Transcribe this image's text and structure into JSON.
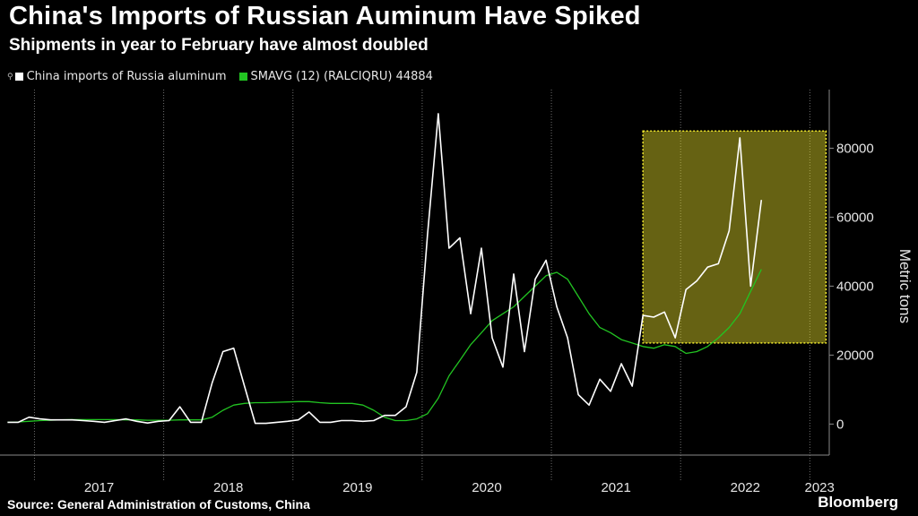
{
  "header": {
    "title": "China's Imports of Russian Auminum Have Spiked",
    "subtitle": "Shipments in year to February have almost doubled"
  },
  "legend": {
    "glyph": "⚲",
    "items": [
      {
        "label": "China imports of Russia aluminum",
        "color": "#ffffff"
      },
      {
        "label": "SMAVG (12) (RALCIQRU) 44884",
        "color": "#22c422"
      }
    ]
  },
  "footer": {
    "source": "Source: General Administration of Customs, China",
    "brand": "Bloomberg"
  },
  "chart_data": {
    "type": "line",
    "ylabel": "Metric tons",
    "ylim": [
      -9000,
      97000
    ],
    "yticks": [
      0,
      20000,
      40000,
      60000,
      80000
    ],
    "ytick_labels": [
      "0",
      "20000",
      "40000",
      "60000",
      "80000"
    ],
    "grid": "vertical dotted at year boundaries",
    "x_start": "2016-10",
    "x_end": "2023-02",
    "year_labels": [
      "2017",
      "2018",
      "2019",
      "2020",
      "2021",
      "2022",
      "2023"
    ],
    "series": [
      {
        "name": "China imports of Russia aluminum",
        "color": "#ffffff",
        "values": [
          500,
          500,
          2000,
          1500,
          1200,
          1200,
          1200,
          1000,
          800,
          500,
          1000,
          1500,
          800,
          300,
          800,
          1000,
          5000,
          500,
          500,
          12000,
          21000,
          22000,
          11000,
          200,
          200,
          500,
          800,
          1200,
          3500,
          500,
          500,
          1000,
          1000,
          800,
          1000,
          2500,
          2500,
          5000,
          15000,
          55000,
          90000,
          51000,
          54000,
          32000,
          51000,
          25000,
          16500,
          43500,
          21000,
          42000,
          47500,
          34000,
          25000,
          8500,
          5500,
          13000,
          9500,
          17500,
          11000,
          31500,
          31000,
          32500,
          25000,
          39000,
          41500,
          45500,
          46500,
          56000,
          83000,
          40000,
          65000
        ]
      },
      {
        "name": "SMAVG (12) (RALCIQRU) 44884",
        "color": "#22c422",
        "values": [
          500,
          600,
          800,
          1000,
          1100,
          1200,
          1300,
          1300,
          1300,
          1300,
          1300,
          1200,
          1200,
          1100,
          1100,
          1100,
          1200,
          1200,
          1200,
          2000,
          4000,
          5500,
          6000,
          6200,
          6200,
          6300,
          6400,
          6500,
          6500,
          6200,
          6000,
          6000,
          6000,
          5500,
          4000,
          2000,
          1000,
          1000,
          1500,
          3000,
          7500,
          14000,
          18500,
          23000,
          26500,
          30000,
          32000,
          34000,
          37000,
          40000,
          43000,
          44000,
          42000,
          37000,
          32000,
          28000,
          26500,
          24500,
          23500,
          22500,
          22000,
          23000,
          22500,
          20500,
          21000,
          22500,
          25000,
          28000,
          32000,
          38500,
          44884
        ]
      }
    ],
    "annotation": {
      "shape": "highlight-rect",
      "x_range": [
        "2021-09",
        "2023-02"
      ],
      "y_range": [
        23500,
        85000
      ],
      "color": "#f2ea2e"
    }
  }
}
